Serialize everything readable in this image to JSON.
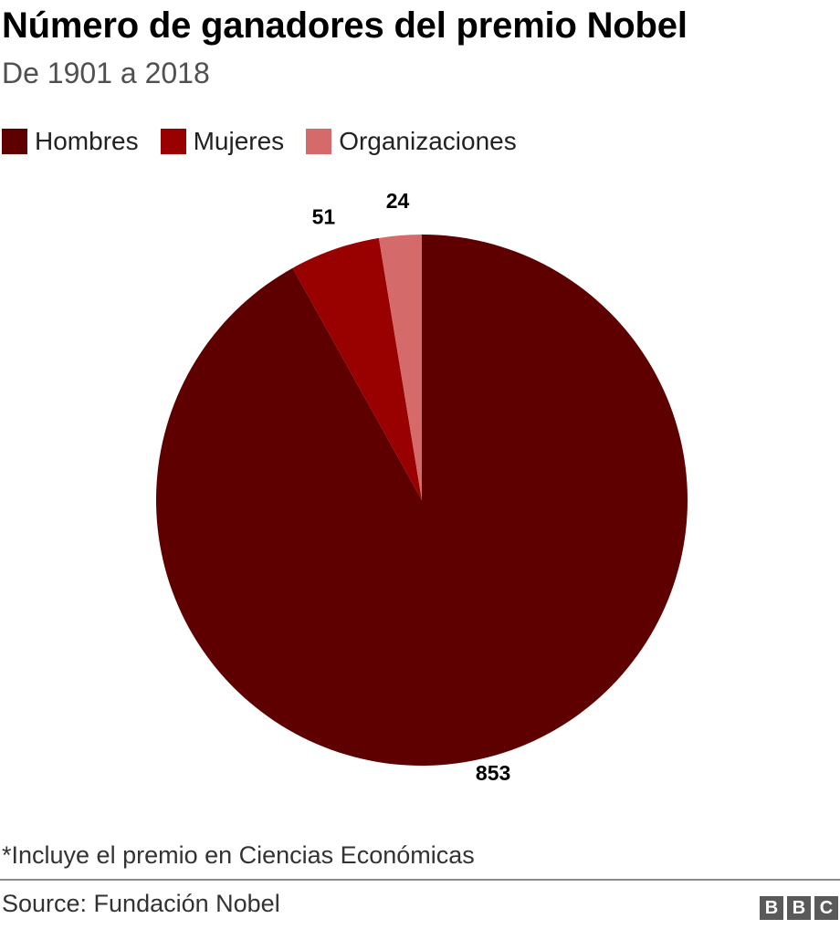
{
  "header": {
    "title": "Número de ganadores del premio Nobel",
    "subtitle": "De 1901 a 2018"
  },
  "chart_data": {
    "type": "pie",
    "title": "Número de ganadores del premio Nobel",
    "subtitle": "De 1901 a 2018",
    "legend_position": "top-left",
    "slices": [
      {
        "name": "Hombres",
        "value": 853,
        "label": "853",
        "color": "#5e0000"
      },
      {
        "name": "Mujeres",
        "value": 51,
        "label": "51",
        "color": "#990000"
      },
      {
        "name": "Organizaciones",
        "value": 24,
        "label": "24",
        "color": "#d46a6a"
      }
    ]
  },
  "footer": {
    "note": "*Incluye el premio en Ciencias Económicas",
    "source": "Source: Fundación Nobel",
    "logo": [
      "B",
      "B",
      "C"
    ]
  }
}
